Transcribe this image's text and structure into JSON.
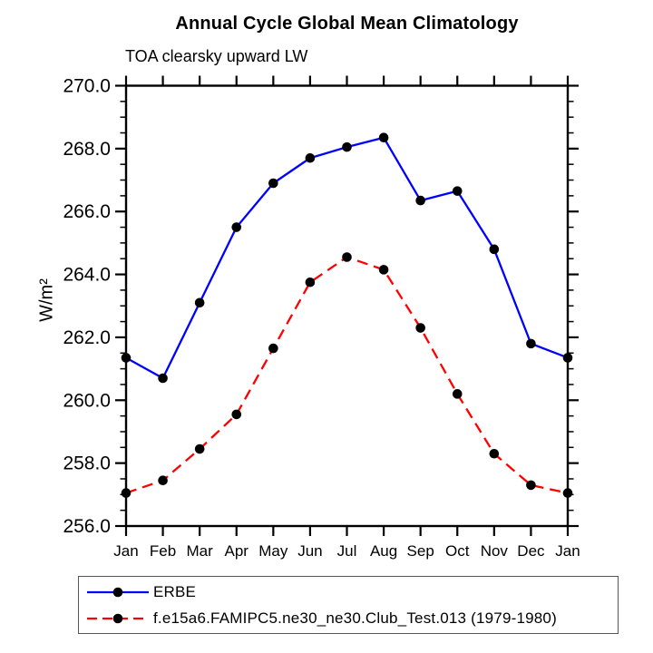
{
  "chart_data": {
    "type": "line",
    "title": "Annual Cycle Global Mean Climatology",
    "subtitle": "TOA clearsky upward LW",
    "ylabel": "W/m²",
    "xlabel": "",
    "categories": [
      "Jan",
      "Feb",
      "Mar",
      "Apr",
      "May",
      "Jun",
      "Jul",
      "Aug",
      "Sep",
      "Oct",
      "Nov",
      "Dec",
      "Jan"
    ],
    "series": [
      {
        "name": "ERBE",
        "color": "#0000ff",
        "style": "solid",
        "marker": "filled-circle",
        "marker_color": "#000000",
        "values": [
          261.35,
          260.7,
          263.1,
          265.5,
          266.9,
          267.7,
          268.05,
          268.35,
          266.35,
          266.65,
          264.8,
          261.8,
          261.35
        ]
      },
      {
        "name": "f.e15a6.FAMIPC5.ne30_ne30.Club_Test.013 (1979-1980)",
        "color": "#ff0000",
        "style": "dashed",
        "marker": "filled-circle",
        "marker_color": "#000000",
        "values": [
          257.05,
          257.45,
          258.45,
          259.55,
          261.65,
          263.75,
          264.55,
          264.15,
          262.3,
          260.2,
          258.3,
          257.3,
          257.05
        ]
      }
    ],
    "y_axis": {
      "min": 256.0,
      "max": 270.0,
      "major_step": 2.0,
      "minor_step": 0.5,
      "tick_labels": [
        "256.0",
        "258.0",
        "260.0",
        "262.0",
        "264.0",
        "266.0",
        "268.0",
        "270.0"
      ]
    },
    "x_axis": {
      "ticks": "months-major-only"
    },
    "grid": false,
    "legend": {
      "position": "bottom-left",
      "border": true
    },
    "axis_color": "#000000",
    "background_color": "#ffffff"
  }
}
